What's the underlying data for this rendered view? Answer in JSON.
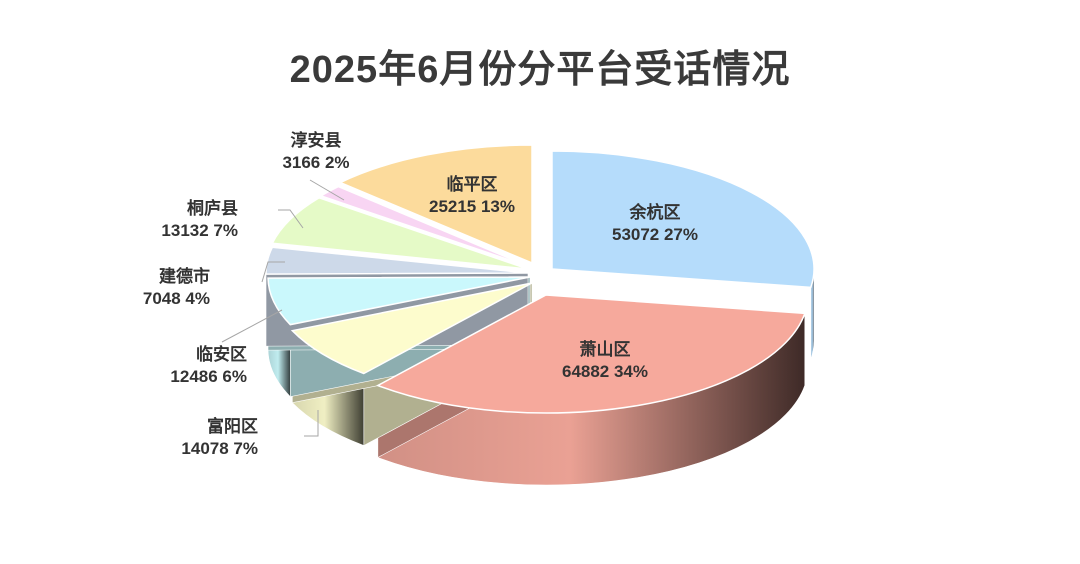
{
  "chart_data": {
    "type": "pie",
    "title": "2025年6月份分平台受话情况",
    "style": "3d-exploded",
    "slices": [
      {
        "name": "余杭区",
        "value": 53072,
        "percent_label": "27%",
        "color": "#b5dcfb"
      },
      {
        "name": "萧山区",
        "value": 64882,
        "percent_label": "34%",
        "color": "#f6a99c"
      },
      {
        "name": "富阳区",
        "value": 14078,
        "percent_label": "7%",
        "color": "#fdfccd"
      },
      {
        "name": "临安区",
        "value": 12486,
        "percent_label": "6%",
        "color": "#caf8fc"
      },
      {
        "name": "建德市",
        "value": 7048,
        "percent_label": "4%",
        "color": "#cdd9e9"
      },
      {
        "name": "桐庐县",
        "value": 13132,
        "percent_label": "7%",
        "color": "#e5fac7"
      },
      {
        "name": "淳安县",
        "value": 3166,
        "percent_label": "2%",
        "color": "#f8d5f3"
      },
      {
        "name": "临平区",
        "value": 25215,
        "percent_label": "13%",
        "color": "#fcdb9c"
      }
    ]
  }
}
